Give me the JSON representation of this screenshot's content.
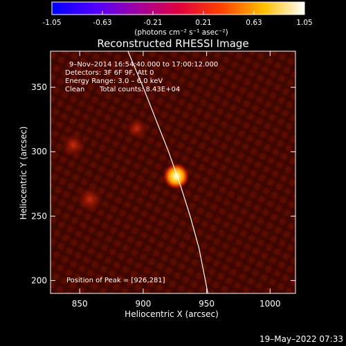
{
  "chart_data": {
    "type": "heatmap",
    "title": "Reconstructed RHESSI Image",
    "xlabel": "Heliocentric X (arcsec)",
    "ylabel": "Heliocentric Y (arcsec)",
    "xlim": [
      827,
      1020
    ],
    "ylim": [
      190,
      378
    ],
    "x_ticks": [
      850,
      900,
      950,
      1000
    ],
    "y_ticks": [
      200,
      250,
      300,
      350
    ],
    "colorbar": {
      "range": [
        -1.05,
        1.05
      ],
      "ticks": [
        "-1.05",
        "-0.63",
        "-0.21",
        "0.21",
        "0.63",
        "1.05"
      ],
      "unit_label": "(photons cm⁻² s⁻¹ asec⁻²)"
    },
    "peak": {
      "x": 926,
      "y": 281,
      "value": 1.05
    },
    "secondary_sources": [
      {
        "x": 858,
        "y": 263,
        "value": 0.36
      },
      {
        "x": 845,
        "y": 305,
        "value": 0.3
      },
      {
        "x": 895,
        "y": 318,
        "value": 0.2
      }
    ],
    "limb_curve": [
      [
        888,
        378
      ],
      [
        900,
        350
      ],
      [
        910,
        325
      ],
      [
        920,
        300
      ],
      [
        929,
        275
      ],
      [
        937,
        250
      ],
      [
        944,
        225
      ],
      [
        949,
        200
      ],
      [
        951,
        190
      ]
    ],
    "annotations": {
      "time": "9–Nov–2014 16:54:40.000 to 17:00:12.000",
      "detectors": "Detectors: 3F 6F 9F, Att 0",
      "energy": "Energy Range: 3.0 – 6.0 keV",
      "method": "Clean",
      "counts": "Total counts: 8.43E+04",
      "peak_label": "Position of Peak = [926,281]"
    },
    "timestamp": "19–May–2022 07:33",
    "colors": {
      "background": "#000000",
      "text": "#ffffff",
      "limb": "#ffffff"
    }
  }
}
